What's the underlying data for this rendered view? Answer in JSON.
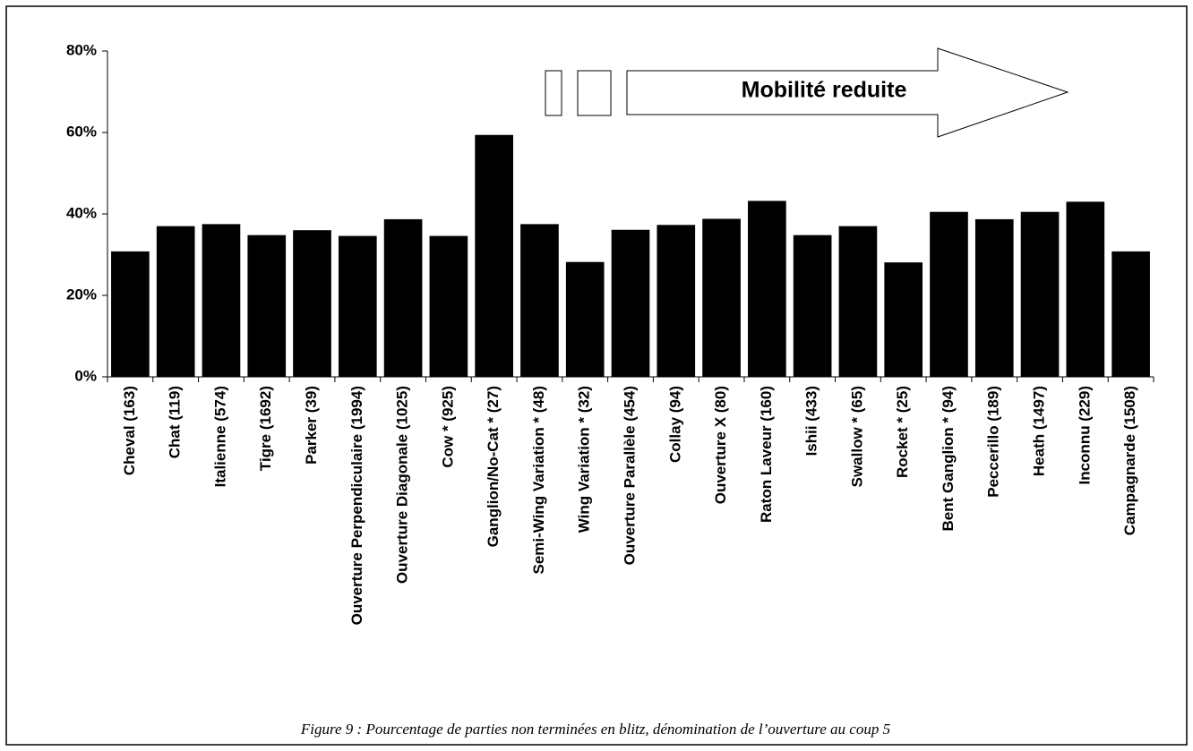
{
  "chart_data": {
    "type": "bar",
    "categories": [
      "Cheval (163)",
      "Chat (119)",
      "Italienne (574)",
      "Tigre (1692)",
      "Parker (39)",
      "Ouverture Perpendiculaire (1994)",
      "Ouverture Diagonale (1025)",
      "Cow * (925)",
      "Ganglion/No-Cat * (27)",
      "Semi-Wing Variation * (48)",
      "Wing Variation * (32)",
      "Ouverture Parallèle (454)",
      "Collay (94)",
      "Ouverture X (80)",
      "Raton Laveur (160)",
      "Ishii (433)",
      "Swallow * (65)",
      "Rocket * (25)",
      "Bent Ganglion * (94)",
      "Peccerillo (189)",
      "Heath (1497)",
      "Inconnu (229)",
      "Campagnarde (1508)"
    ],
    "values": [
      30.8,
      37,
      37.5,
      34.8,
      36,
      34.6,
      38.7,
      34.6,
      59.4,
      37.5,
      28.2,
      36.1,
      37.3,
      38.8,
      43.2,
      34.8,
      37,
      28.1,
      40.5,
      38.7,
      40.5,
      43,
      30.8
    ],
    "color": "#000000",
    "ylim": [
      0,
      80
    ],
    "yticks": [
      {
        "value": 0,
        "label": "0%"
      },
      {
        "value": 20,
        "label": "20%"
      },
      {
        "value": 40,
        "label": "40%"
      },
      {
        "value": 60,
        "label": "60%"
      },
      {
        "value": 80,
        "label": "80%"
      }
    ],
    "annotation": "Mobilité reduite",
    "caption": "Figure 9 : Pourcentage de parties non terminées en blitz, dénomination de l’ouverture au coup 5"
  }
}
